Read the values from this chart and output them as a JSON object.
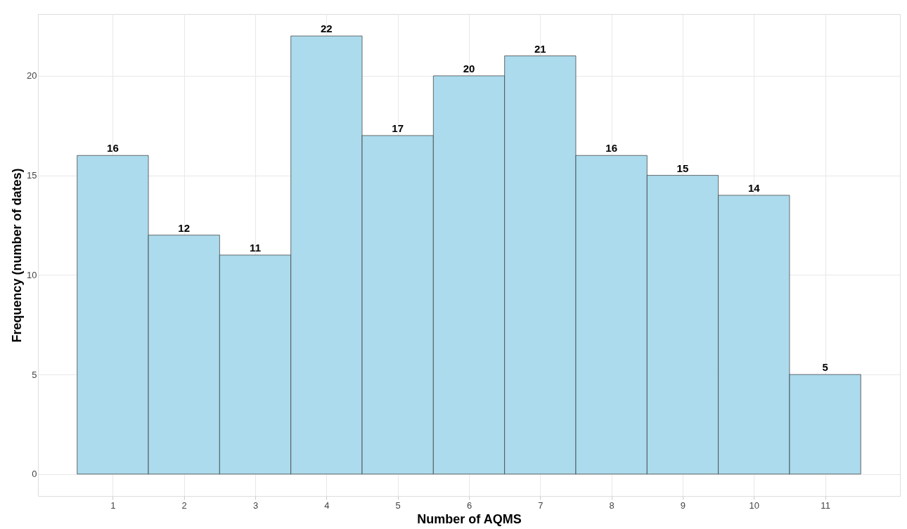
{
  "chart_data": {
    "type": "histogram",
    "xlabel": "Number of AQMS",
    "ylabel": "Frequency (number of dates)",
    "bins": [
      0.5,
      1.5,
      2.5,
      3.5,
      4.5,
      5.5,
      6.5,
      7.5,
      8.5,
      9.5,
      10.5,
      11.5
    ],
    "values": [
      16,
      12,
      11,
      22,
      17,
      20,
      21,
      16,
      15,
      14,
      5
    ],
    "color": "#abdbec",
    "xlim": [
      -0.05,
      12.05
    ],
    "xticks": [
      1,
      2,
      3,
      4,
      5,
      6,
      7,
      8,
      9,
      10,
      11
    ],
    "ylim": [
      -1.1,
      23.1
    ],
    "yticks": [
      0,
      5,
      10,
      15,
      20
    ],
    "grid": true,
    "data_labels": true
  }
}
